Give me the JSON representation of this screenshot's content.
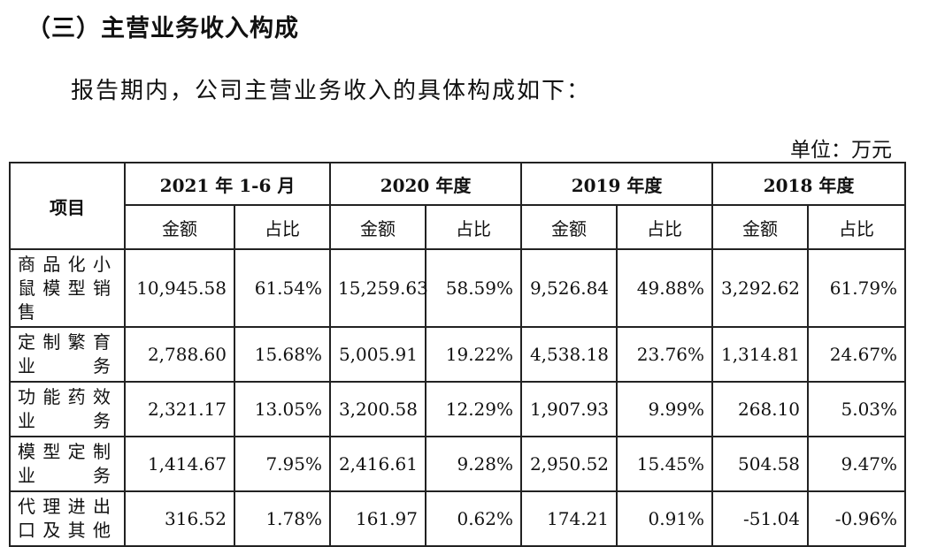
{
  "section_title": "（三）主营业务收入构成",
  "intro": "报告期内，公司主营业务收入的具体构成如下：",
  "unit": "单位：万元",
  "table": {
    "item_header": "项目",
    "periods": [
      "2021 年 1-6 月",
      "2020 年度",
      "2019 年度",
      "2018 年度"
    ],
    "amount_header": "金额",
    "ratio_header": "占比",
    "rows": [
      {
        "label": "商品化小鼠模型销售",
        "values": [
          "10,945.58",
          "61.54%",
          "15,259.63",
          "58.59%",
          "9,526.84",
          "49.88%",
          "3,292.62",
          "61.79%"
        ]
      },
      {
        "label": "定制繁育业务",
        "values": [
          "2,788.60",
          "15.68%",
          "5,005.91",
          "19.22%",
          "4,538.18",
          "23.76%",
          "1,314.81",
          "24.67%"
        ]
      },
      {
        "label": "功能药效业务",
        "values": [
          "2,321.17",
          "13.05%",
          "3,200.58",
          "12.29%",
          "1,907.93",
          "9.99%",
          "268.10",
          "5.03%"
        ]
      },
      {
        "label": "模型定制业务",
        "values": [
          "1,414.67",
          "7.95%",
          "2,416.61",
          "9.28%",
          "2,950.52",
          "15.45%",
          "504.58",
          "9.47%"
        ]
      },
      {
        "label": "代理进出口及其他",
        "values": [
          "316.52",
          "1.78%",
          "161.97",
          "0.62%",
          "174.21",
          "0.91%",
          "-51.04",
          "-0.96%"
        ]
      }
    ]
  }
}
